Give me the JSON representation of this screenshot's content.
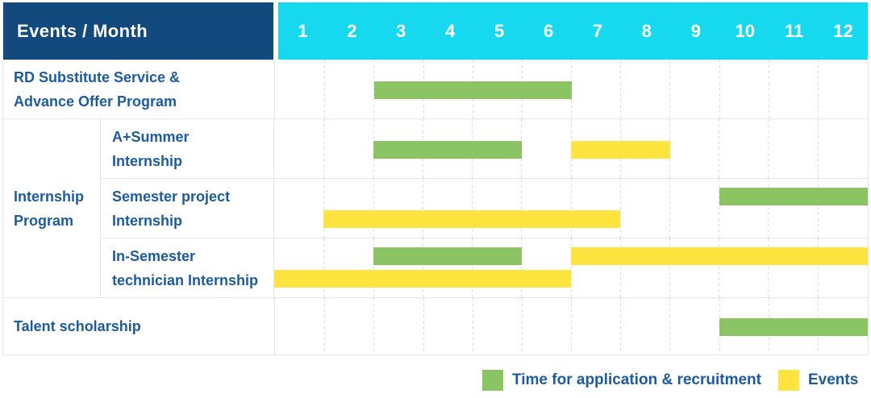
{
  "header": {
    "title": "Events / Month",
    "months": [
      "1",
      "2",
      "3",
      "4",
      "5",
      "6",
      "7",
      "8",
      "9",
      "10",
      "11",
      "12"
    ]
  },
  "rows": [
    {
      "line1": "RD Substitute Service &",
      "line2": "Advance Offer Program"
    },
    {
      "line1": "A+Summer",
      "line2": "Internship"
    },
    {
      "line1": "Semester project",
      "line2": "Internship"
    },
    {
      "line1": "In-Semester",
      "line2": "technician Internship"
    },
    {
      "line1": "Talent scholarship",
      "line2": ""
    }
  ],
  "group": {
    "line1": "Internship",
    "line2": "Program"
  },
  "legend": [
    {
      "series": "recruitment",
      "label": "Time for application & recruitment"
    },
    {
      "series": "events",
      "label": "Events"
    }
  ],
  "colors": {
    "header_bg": "#124A7D",
    "months_bg": "#16D9F0",
    "label_text": "#1C5C9E",
    "recruitment": "#8AC463",
    "events": "#FFE440",
    "grid_line": "#DCDCDC",
    "row_border": "#E6E6E6"
  },
  "chart_data": {
    "type": "table",
    "subtype": "gantt",
    "title": "Events / Month",
    "months": [
      1,
      2,
      3,
      4,
      5,
      6,
      7,
      8,
      9,
      10,
      11,
      12
    ],
    "series_colors": {
      "recruitment": "#8AC463",
      "events": "#FFE440"
    },
    "legend": [
      {
        "series": "recruitment",
        "label": "Time for application & recruitment",
        "color": "#8AC463"
      },
      {
        "series": "events",
        "label": "Events",
        "color": "#FFE440"
      }
    ],
    "rows": [
      {
        "label": "RD Substitute Service & Advance Offer Program",
        "group": null,
        "bars": [
          {
            "series": "recruitment",
            "start_month": 3,
            "end_month": 6,
            "line": "mid"
          }
        ]
      },
      {
        "label": "A+Summer Internship",
        "group": "Internship Program",
        "bars": [
          {
            "series": "recruitment",
            "start_month": 3,
            "end_month": 5,
            "line": "mid"
          },
          {
            "series": "events",
            "start_month": 7,
            "end_month": 8,
            "line": "mid"
          }
        ]
      },
      {
        "label": "Semester project Internship",
        "group": "Internship Program",
        "bars": [
          {
            "series": "recruitment",
            "start_month": 10,
            "end_month": 12,
            "line": "top"
          },
          {
            "series": "events",
            "start_month": 2,
            "end_month": 7,
            "line": "bottom"
          }
        ]
      },
      {
        "label": "In-Semester technician Internship",
        "group": "Internship Program",
        "bars": [
          {
            "series": "recruitment",
            "start_month": 3,
            "end_month": 5,
            "line": "top"
          },
          {
            "series": "events",
            "start_month": 7,
            "end_month": 12,
            "line": "top"
          },
          {
            "series": "events",
            "start_month": 1,
            "end_month": 6,
            "line": "bottom"
          }
        ]
      },
      {
        "label": "Talent scholarship",
        "group": null,
        "bars": [
          {
            "series": "recruitment",
            "start_month": 10,
            "end_month": 12,
            "line": "mid"
          }
        ]
      }
    ]
  }
}
